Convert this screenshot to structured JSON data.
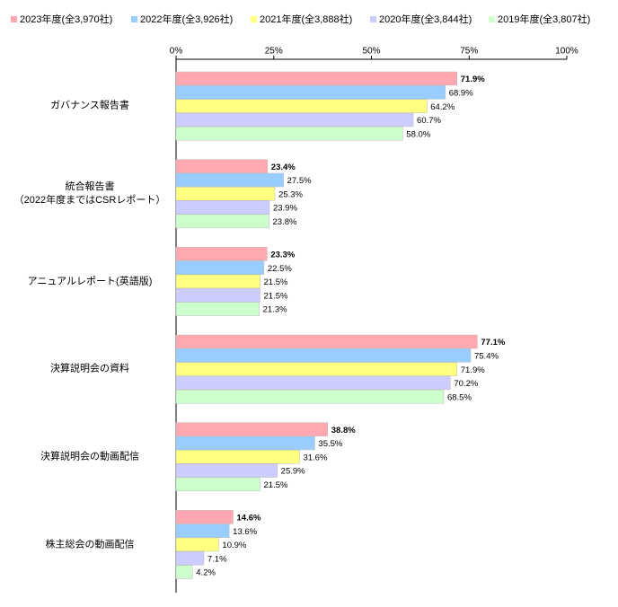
{
  "chart_data": {
    "type": "bar",
    "orientation": "horizontal",
    "categories": [
      "ガバナンス報告書",
      "統合報告書\n（2022年度まではCSRレポート）",
      "アニュアルレポート(英語版)",
      "決算説明会の資料",
      "決算説明会の動画配信",
      "株主総会の動画配信"
    ],
    "series": [
      {
        "name": "2023年度(全3,970社)",
        "color": "#ffa8b2",
        "values": [
          71.9,
          23.4,
          23.3,
          77.1,
          38.8,
          14.6
        ],
        "value_labels": [
          "71.9%",
          "23.4%",
          "23.3%",
          "77.1%",
          "38.8%",
          "14.6%"
        ]
      },
      {
        "name": "2022年度(全3,926社)",
        "color": "#99ccff",
        "values": [
          68.9,
          27.5,
          22.5,
          75.4,
          35.5,
          13.6
        ],
        "value_labels": [
          "68.9%",
          "27.5%",
          "22.5%",
          "75.4%",
          "35.5%",
          "13.6%"
        ]
      },
      {
        "name": "2021年度(全3,888社)",
        "color": "#ffff80",
        "values": [
          64.2,
          25.3,
          21.5,
          71.9,
          31.6,
          10.9
        ],
        "value_labels": [
          "64.2%",
          "25.3%",
          "21.5%",
          "71.9%",
          "31.6%",
          "10.9%"
        ]
      },
      {
        "name": "2020年度(全3,844社)",
        "color": "#ccccff",
        "values": [
          60.7,
          23.9,
          21.5,
          70.2,
          25.9,
          7.1
        ],
        "value_labels": [
          "60.7%",
          "23.9%",
          "21.5%",
          "70.2%",
          "25.9%",
          "7.1%"
        ]
      },
      {
        "name": "2019年度(全3,807社)",
        "color": "#ccffcc",
        "values": [
          58.0,
          23.8,
          21.3,
          68.5,
          21.5,
          4.2
        ],
        "value_labels": [
          "58.0%",
          "23.8%",
          "21.3%",
          "68.5%",
          "21.5%",
          "4.2%"
        ]
      }
    ],
    "xlim": [
      0,
      100
    ],
    "xticks": [
      {
        "value": 0,
        "label": "0%"
      },
      {
        "value": 25,
        "label": "25%"
      },
      {
        "value": 50,
        "label": "50%"
      },
      {
        "value": 75,
        "label": "75%"
      },
      {
        "value": 100,
        "label": "100%"
      }
    ],
    "legend": "top"
  }
}
